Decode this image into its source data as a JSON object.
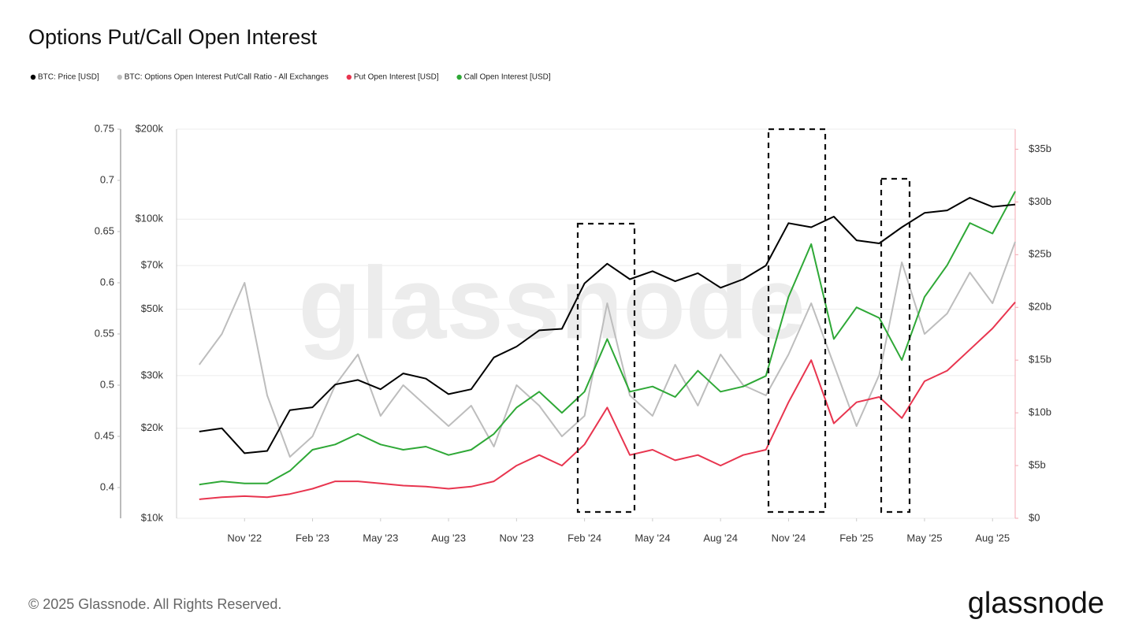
{
  "chart_data": {
    "type": "line",
    "title": "Options Put/Call Open Interest",
    "watermark": "glassnode",
    "footer": "© 2025 Glassnode. All Rights Reserved.",
    "logo": "glassnode",
    "x": [
      "2022-09",
      "2022-10",
      "2022-11",
      "2022-12",
      "2023-01",
      "2023-02",
      "2023-03",
      "2023-04",
      "2023-05",
      "2023-06",
      "2023-07",
      "2023-08",
      "2023-09",
      "2023-10",
      "2023-11",
      "2023-12",
      "2024-01",
      "2024-02",
      "2024-03",
      "2024-04",
      "2024-05",
      "2024-06",
      "2024-07",
      "2024-08",
      "2024-09",
      "2024-10",
      "2024-11",
      "2024-12",
      "2025-01",
      "2025-02",
      "2025-03",
      "2025-04",
      "2025-05",
      "2025-06",
      "2025-07",
      "2025-08",
      "2025-09"
    ],
    "xlim": [
      "2022-08",
      "2025-09"
    ],
    "xticks": [
      {
        "value": "2022-11",
        "label": "Nov '22"
      },
      {
        "value": "2023-02",
        "label": "Feb '23"
      },
      {
        "value": "2023-05",
        "label": "May '23"
      },
      {
        "value": "2023-08",
        "label": "Aug '23"
      },
      {
        "value": "2023-11",
        "label": "Nov '23"
      },
      {
        "value": "2024-02",
        "label": "Feb '24"
      },
      {
        "value": "2024-05",
        "label": "May '24"
      },
      {
        "value": "2024-08",
        "label": "Aug '24"
      },
      {
        "value": "2024-11",
        "label": "Nov '24"
      },
      {
        "value": "2025-02",
        "label": "Feb '25"
      },
      {
        "value": "2025-05",
        "label": "May '25"
      },
      {
        "value": "2025-08",
        "label": "Aug '25"
      }
    ],
    "ylim": [
      10000,
      200000
    ],
    "yscale": "log",
    "yticks": [
      {
        "value": 10000,
        "label": "$10k"
      },
      {
        "value": 20000,
        "label": "$20k"
      },
      {
        "value": 30000,
        "label": "$30k"
      },
      {
        "value": 50000,
        "label": "$50k"
      },
      {
        "value": 70000,
        "label": "$70k"
      },
      {
        "value": 100000,
        "label": "$100k"
      },
      {
        "value": 200000,
        "label": "$200k"
      }
    ],
    "y2lim": [
      0,
      36.9
    ],
    "y2ticks": [
      {
        "value": 0,
        "label": "$0"
      },
      {
        "value": 5,
        "label": "$5b"
      },
      {
        "value": 10,
        "label": "$10b"
      },
      {
        "value": 15,
        "label": "$15b"
      },
      {
        "value": 20,
        "label": "$20b"
      },
      {
        "value": 25,
        "label": "$25b"
      },
      {
        "value": 30,
        "label": "$30b"
      },
      {
        "value": 35,
        "label": "$35b"
      }
    ],
    "y3lim": [
      0.37,
      0.75
    ],
    "y3ticks": [
      0.4,
      0.45,
      0.5,
      0.55,
      0.6,
      0.65,
      0.7,
      0.75
    ],
    "grid": true,
    "legend": "top-left",
    "series": [
      {
        "name": "BTC: Options Open Interest Put/Call Ratio - All Exchanges",
        "color": "#bdbdbd",
        "axis": "y3",
        "values": [
          0.52,
          0.55,
          0.6,
          0.49,
          0.43,
          0.45,
          0.5,
          0.53,
          0.47,
          0.5,
          0.48,
          0.46,
          0.48,
          0.44,
          0.5,
          0.48,
          0.45,
          0.47,
          0.58,
          0.49,
          0.47,
          0.52,
          0.48,
          0.53,
          0.5,
          0.49,
          0.53,
          0.58,
          0.52,
          0.46,
          0.51,
          0.62,
          0.55,
          0.57,
          0.61,
          0.58,
          0.64
        ]
      },
      {
        "name": "Call Open Interest [USD]",
        "color": "#2ea836",
        "axis": "y2",
        "values": [
          3.2,
          3.5,
          3.3,
          3.3,
          4.5,
          6.5,
          7.0,
          8.0,
          7.0,
          6.5,
          6.8,
          6.0,
          6.5,
          8.0,
          10.5,
          12.0,
          10.0,
          12.0,
          17.0,
          12.0,
          12.5,
          11.5,
          14.0,
          12.0,
          12.5,
          13.5,
          21,
          26,
          17,
          20,
          19,
          15,
          21,
          24,
          28,
          27,
          31
        ]
      },
      {
        "name": "Put Open Interest [USD]",
        "color": "#e8354f",
        "axis": "y2",
        "values": [
          1.8,
          2.0,
          2.1,
          2.0,
          2.3,
          2.8,
          3.5,
          3.5,
          3.3,
          3.1,
          3.0,
          2.8,
          3.0,
          3.5,
          5.0,
          6.0,
          5.0,
          7.0,
          10.5,
          6.0,
          6.5,
          5.5,
          6.0,
          5.0,
          6.0,
          6.5,
          11,
          15,
          9,
          11,
          11.5,
          9.5,
          13,
          14,
          16,
          18,
          20.5
        ]
      },
      {
        "name": "BTC: Price [USD]",
        "color": "#000000",
        "axis": "y",
        "values": [
          19500,
          20000,
          16500,
          16800,
          23000,
          23500,
          28000,
          29000,
          27000,
          30500,
          29300,
          26000,
          27000,
          34500,
          37500,
          42500,
          43000,
          61000,
          71000,
          63000,
          67000,
          62000,
          66000,
          59000,
          63000,
          70000,
          97000,
          94000,
          102000,
          85000,
          83000,
          94000,
          105000,
          107000,
          118000,
          110000,
          112000
        ]
      }
    ],
    "legend_order": [
      3,
      0,
      2,
      1
    ]
  }
}
